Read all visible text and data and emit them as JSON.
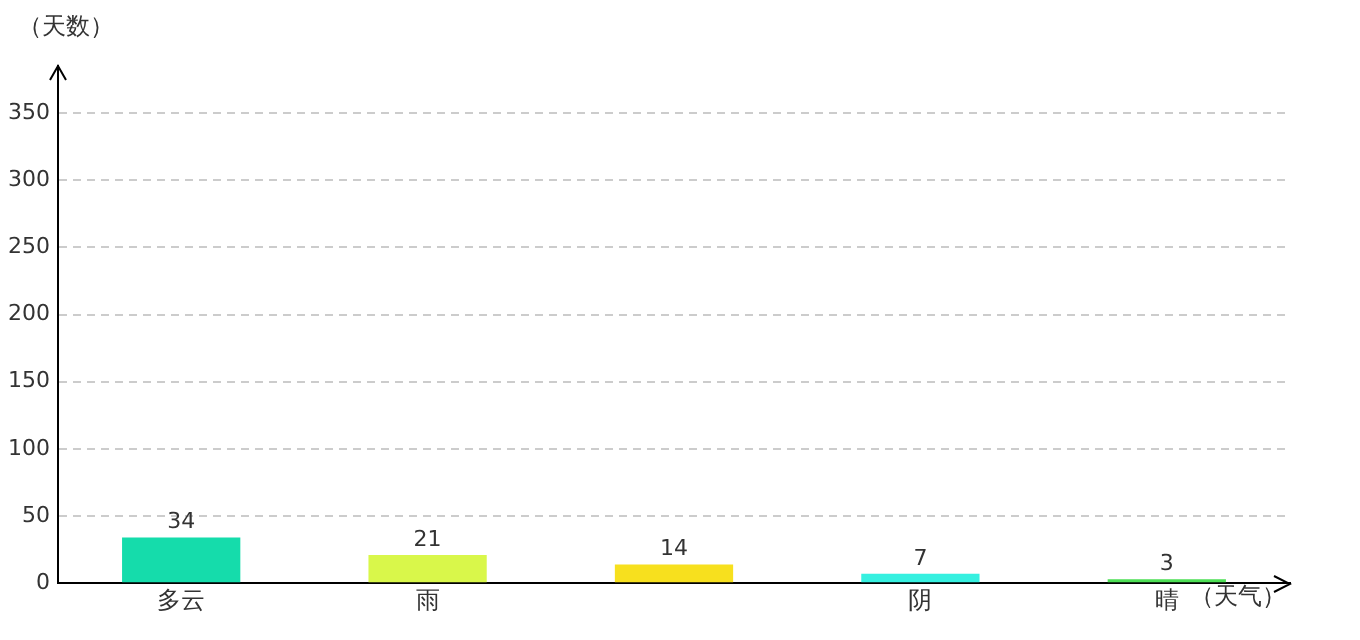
{
  "chart_data": {
    "type": "bar",
    "ylabel": "（天数）",
    "xlabel": "（天气）",
    "categories": [
      "多云",
      "雨",
      null,
      "阴",
      "晴"
    ],
    "values": [
      34,
      21,
      14,
      7,
      3
    ],
    "colors": [
      "#15dcab",
      "#d9f74a",
      "#f7e01e",
      "#36f0e0",
      "#4ddf55"
    ],
    "ylim": [
      0,
      385
    ],
    "yticks": [
      0,
      50,
      100,
      150,
      200,
      250,
      300,
      350
    ],
    "grid": "y",
    "data_labels": true,
    "legend": false
  }
}
